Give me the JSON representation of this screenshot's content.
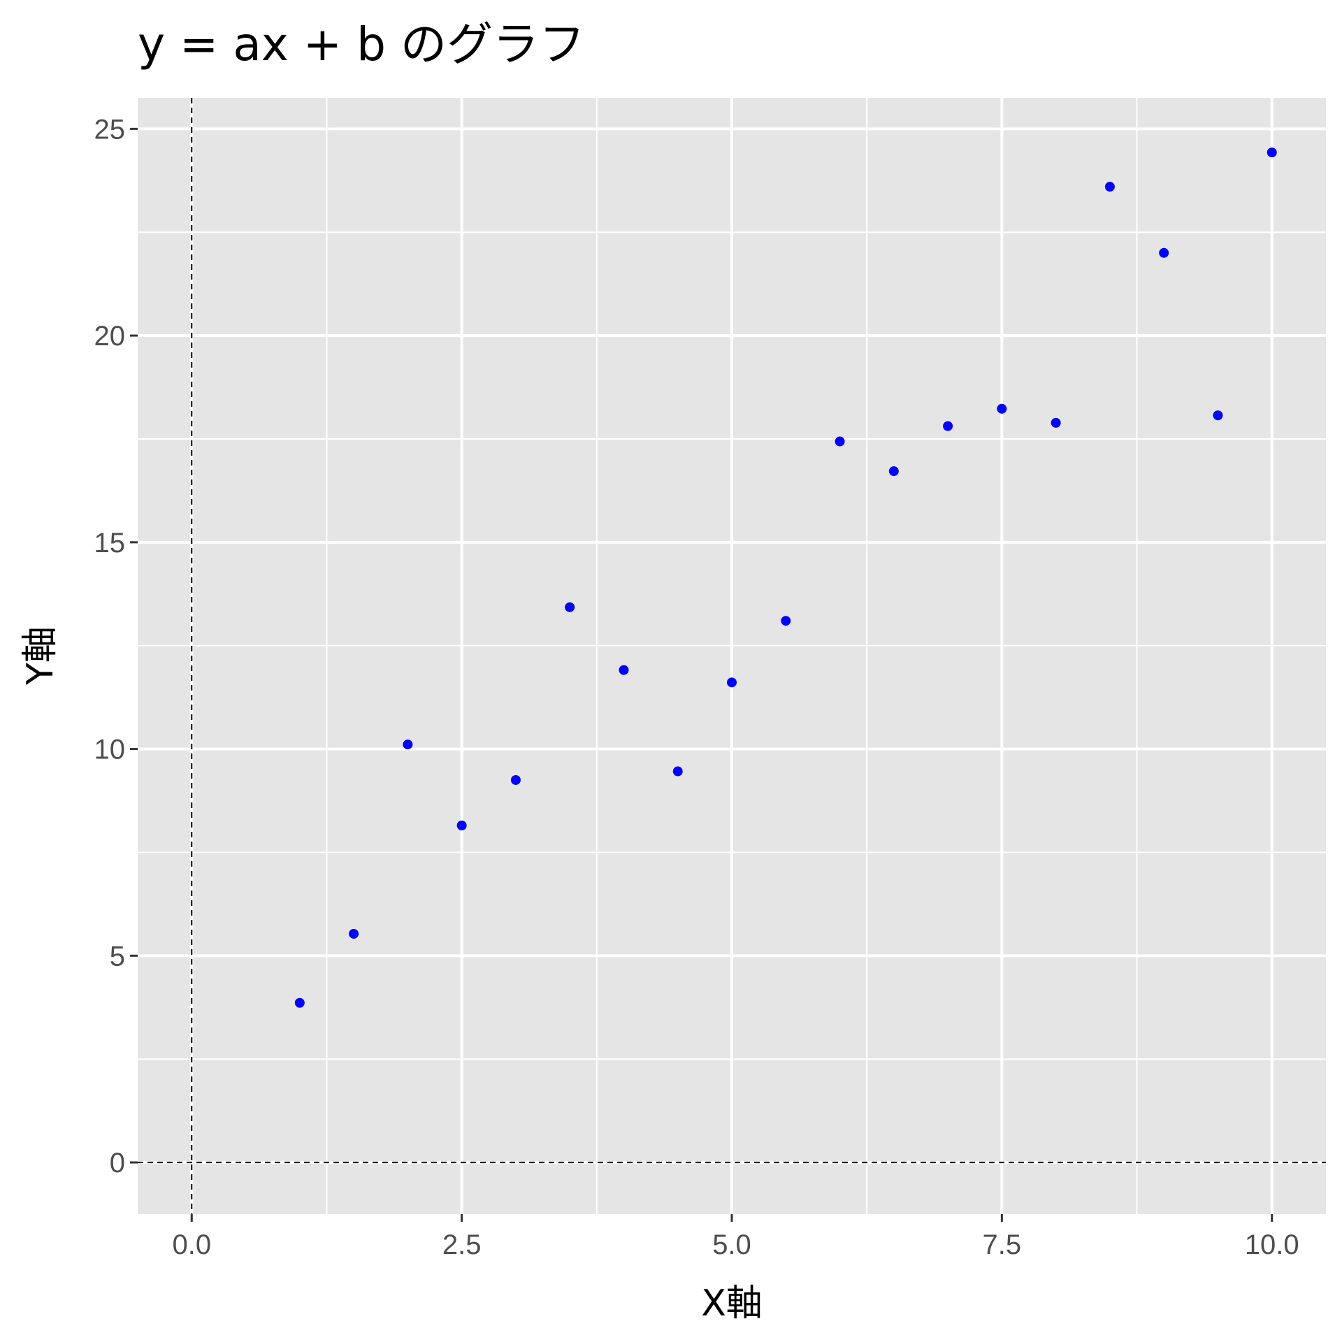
{
  "chart_data": {
    "type": "scatter",
    "title": "y = ax + b のグラフ",
    "xlabel": "X軸",
    "ylabel": "Y軸",
    "xlim": [
      -0.5,
      10.5
    ],
    "ylim": [
      -1.25,
      25.75
    ],
    "x_ticks": [
      0,
      2.5,
      5,
      7.5,
      10
    ],
    "x_tick_labels": [
      "0.0",
      "2.5",
      "5.0",
      "7.5",
      "10.0"
    ],
    "y_ticks": [
      0,
      5,
      10,
      15,
      20,
      25
    ],
    "y_tick_labels": [
      "0",
      "5",
      "10",
      "15",
      "20",
      "25"
    ],
    "grid": true,
    "reference_lines": {
      "x": 0,
      "y": 0,
      "style": "dashed"
    },
    "point_color": "#0000ff",
    "panel_color": "#e5e5e5",
    "grid_color": "#ffffff",
    "series": [
      {
        "x": [
          1.0,
          1.5,
          2.0,
          2.5,
          3.0,
          3.5,
          4.0,
          4.5,
          5.0,
          5.5,
          6.0,
          6.5,
          7.0,
          7.5,
          8.0,
          8.5,
          9.0,
          9.5,
          10.0
        ],
        "y": [
          3.86,
          5.53,
          10.11,
          8.15,
          9.25,
          13.43,
          11.91,
          9.46,
          11.61,
          13.1,
          17.44,
          16.72,
          17.81,
          18.23,
          17.89,
          23.6,
          22.0,
          18.07,
          24.43
        ]
      }
    ]
  }
}
